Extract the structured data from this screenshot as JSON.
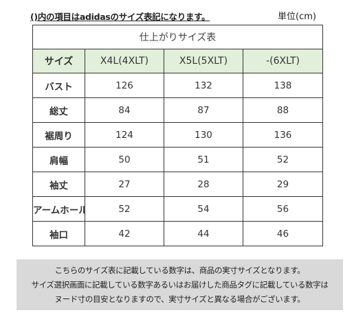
{
  "top_note": "()内の項目はadidasのサイズ表記になります。",
  "unit": "単位(cm)",
  "table": {
    "title": "仕上がりサイズ表",
    "header": {
      "label": "サイズ",
      "columns": [
        "X4L(4XLT)",
        "X5L(5XLT)",
        "-(6XLT)"
      ]
    },
    "rows": [
      {
        "label": "バスト",
        "values": [
          "126",
          "132",
          "138"
        ]
      },
      {
        "label": "総丈",
        "values": [
          "84",
          "87",
          "88"
        ]
      },
      {
        "label": "裾周り",
        "values": [
          "124",
          "130",
          "136"
        ]
      },
      {
        "label": "肩幅",
        "values": [
          "50",
          "51",
          "52"
        ]
      },
      {
        "label": "袖丈",
        "values": [
          "27",
          "28",
          "29"
        ]
      },
      {
        "label": "アームホール",
        "values": [
          "52",
          "54",
          "56"
        ]
      },
      {
        "label": "袖口",
        "values": [
          "42",
          "44",
          "46"
        ]
      }
    ]
  },
  "footer": {
    "lines": [
      "こちらのサイズ表に記載している数字は、商品の実寸サイズとなります。",
      "サイズ選択画面に記載している数字あるいはお届けした商品タグに記載している数字は",
      "ヌード寸の目安となりますので、実寸サイズと異なる場合がございます。"
    ]
  },
  "colors": {
    "header_bg": "#e2efda",
    "footer_bg": "#d9d9d9",
    "border": "#333333"
  }
}
